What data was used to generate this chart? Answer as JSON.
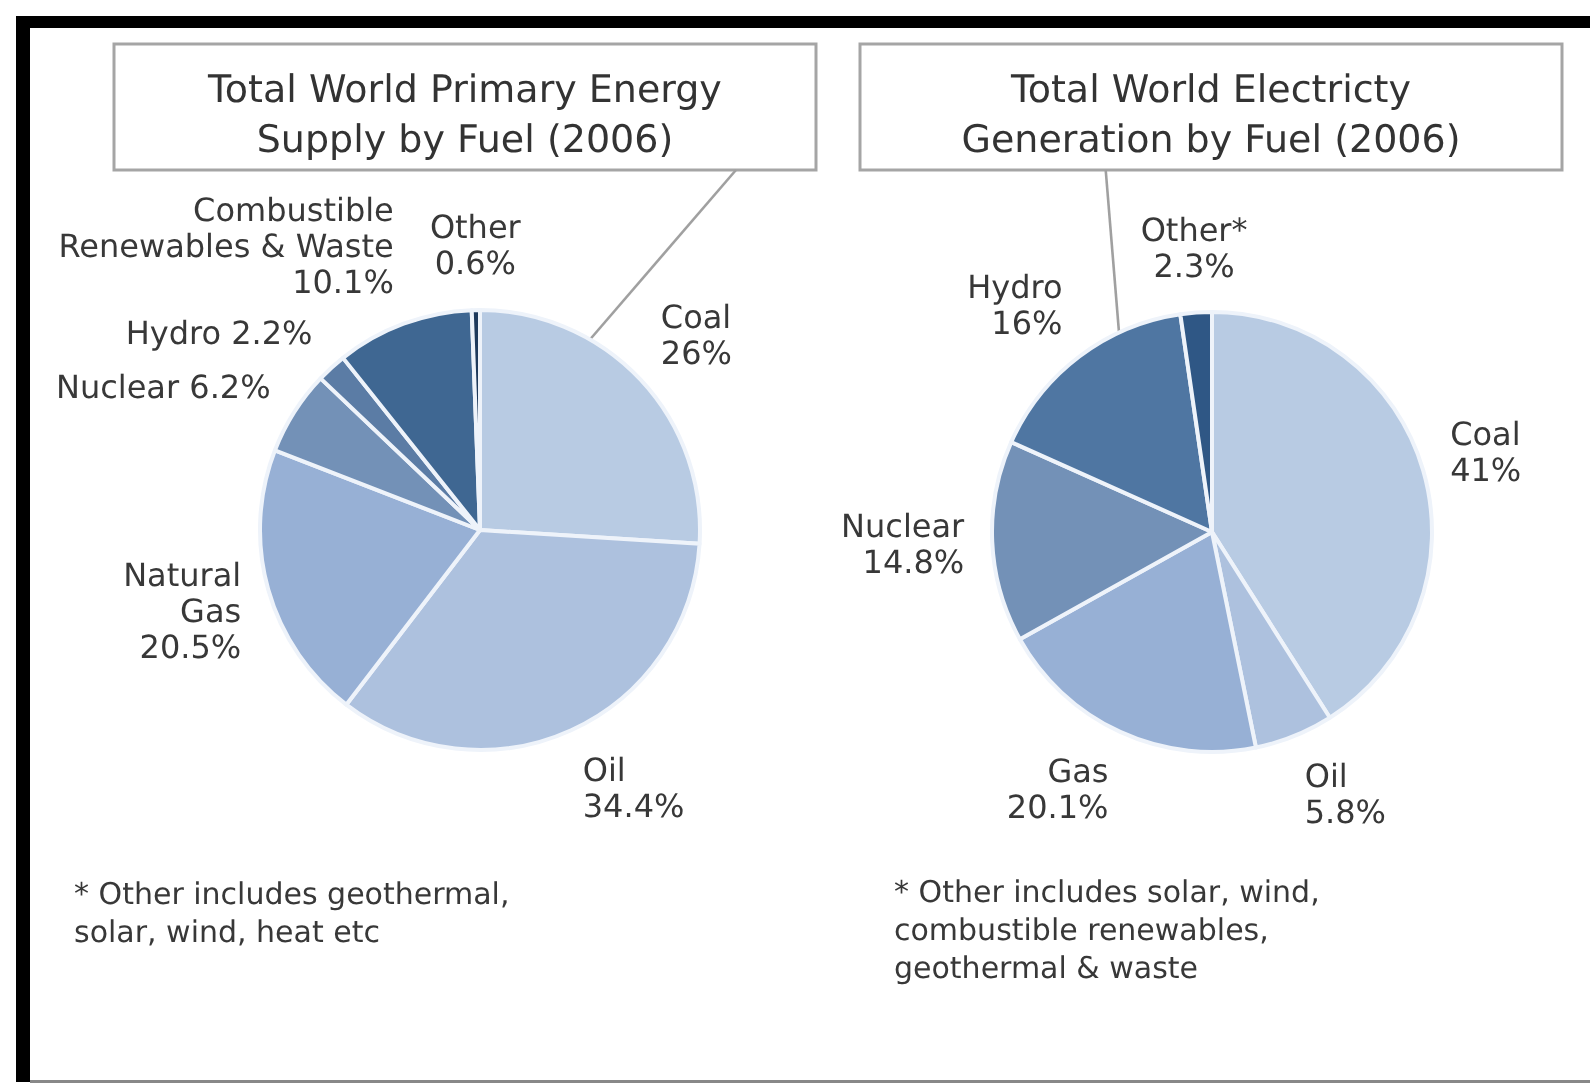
{
  "chart_data": [
    {
      "type": "pie",
      "title": "Total World Primary Energy Supply by Fuel (2006)",
      "categories": [
        "Coal",
        "Oil",
        "Natural Gas",
        "Nuclear",
        "Hydro",
        "Combustible Renewables & Waste",
        "Other"
      ],
      "values": [
        26,
        34.4,
        20.5,
        6.2,
        2.2,
        10.1,
        0.6
      ],
      "value_labels": [
        "26%",
        "34.4%",
        "20.5%",
        "6.2%",
        "2.2%",
        "10.1%",
        "0.6%"
      ],
      "colors": [
        "#b8cbe3",
        "#adc1de",
        "#97b0d5",
        "#7391b7",
        "#5b7ca5",
        "#3f6792",
        "#1e3a5c"
      ],
      "annotations": [
        "* Other includes geothermal, solar, wind, heat etc"
      ]
    },
    {
      "type": "pie",
      "title": "Total World Electricty Generation by Fuel (2006)",
      "categories": [
        "Coal",
        "Oil",
        "Gas",
        "Nuclear",
        "Hydro",
        "Other*"
      ],
      "values": [
        41,
        5.8,
        20.1,
        14.8,
        16,
        2.3
      ],
      "value_labels": [
        "41%",
        "5.8%",
        "20.1%",
        "14.8%",
        "16%",
        "2.3%"
      ],
      "colors": [
        "#b8cbe3",
        "#adc1de",
        "#97b0d5",
        "#7391b7",
        "#4f76a2",
        "#2f5785"
      ],
      "annotations": [
        "* Other includes solar, wind, combustible renewables, geothermal & waste"
      ]
    }
  ]
}
